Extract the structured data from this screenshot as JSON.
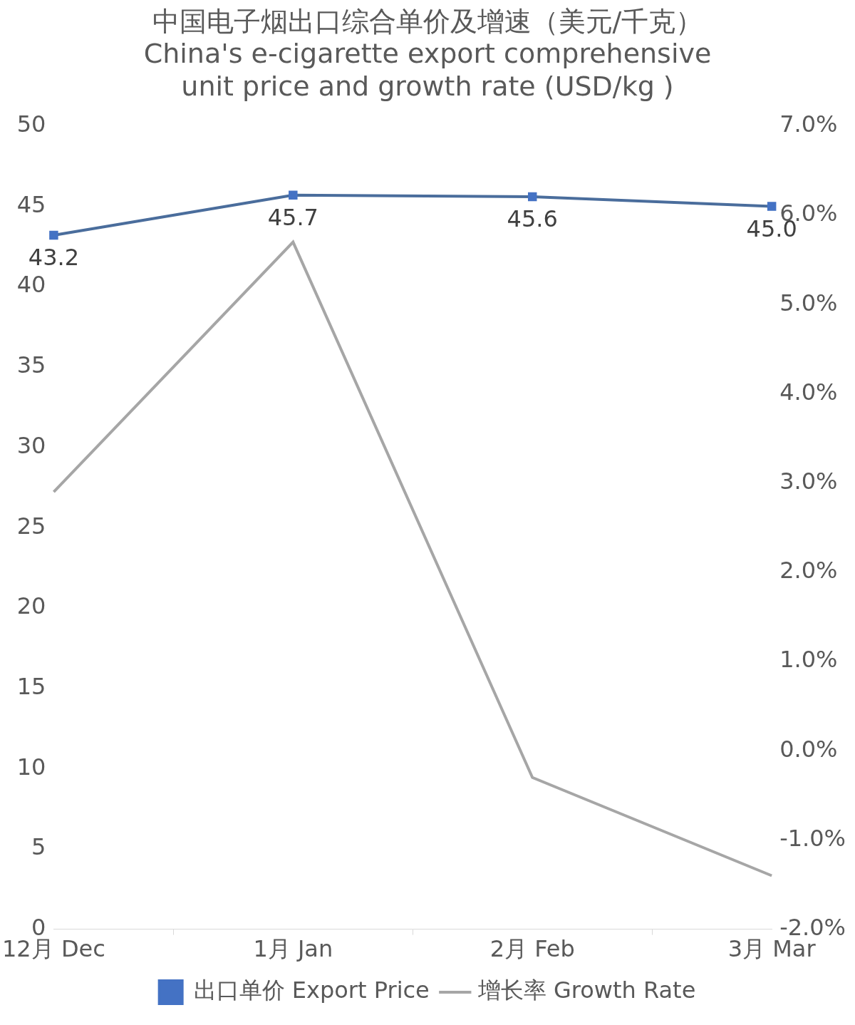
{
  "chart_data": {
    "type": "line",
    "title": [
      "中国电子烟出口综合单价及增速（美元/千克）",
      "China's e-cigarette export comprehensive",
      "unit price and growth rate (USD/kg )"
    ],
    "categories": [
      "12月 Dec",
      "1月 Jan",
      "2月 Feb",
      "3月 Mar"
    ],
    "series": [
      {
        "name": "出口单价 Export Price",
        "color": "#4a6d9c",
        "marker": "square",
        "data_labels": true,
        "values": [
          43.2,
          45.7,
          45.6,
          45.0
        ],
        "value_labels": [
          "43.2",
          "45.7",
          "45.6",
          "45.0"
        ]
      },
      {
        "name": "增长率 Growth Rate",
        "color": "#a6a6a6",
        "marker": "none",
        "axis": "y2",
        "values": [
          2.9,
          5.7,
          -0.3,
          -1.4
        ]
      }
    ],
    "ylim": [
      0,
      50
    ],
    "yticks": [
      0,
      5,
      10,
      15,
      20,
      25,
      30,
      35,
      40,
      45,
      50
    ],
    "y2lim": [
      -2,
      7
    ],
    "y2ticks": [
      {
        "value": -2,
        "label": "-2.0%"
      },
      {
        "value": -1,
        "label": "-1.0%"
      },
      {
        "value": 0,
        "label": "0.0%"
      },
      {
        "value": 1,
        "label": "1.0%"
      },
      {
        "value": 2,
        "label": "2.0%"
      },
      {
        "value": 3,
        "label": "3.0%"
      },
      {
        "value": 4,
        "label": "4.0%"
      },
      {
        "value": 5,
        "label": "5.0%"
      },
      {
        "value": 6,
        "label": "6.0%"
      },
      {
        "value": 7,
        "label": "7.0%"
      }
    ],
    "grid": false,
    "legend": "bottom"
  }
}
